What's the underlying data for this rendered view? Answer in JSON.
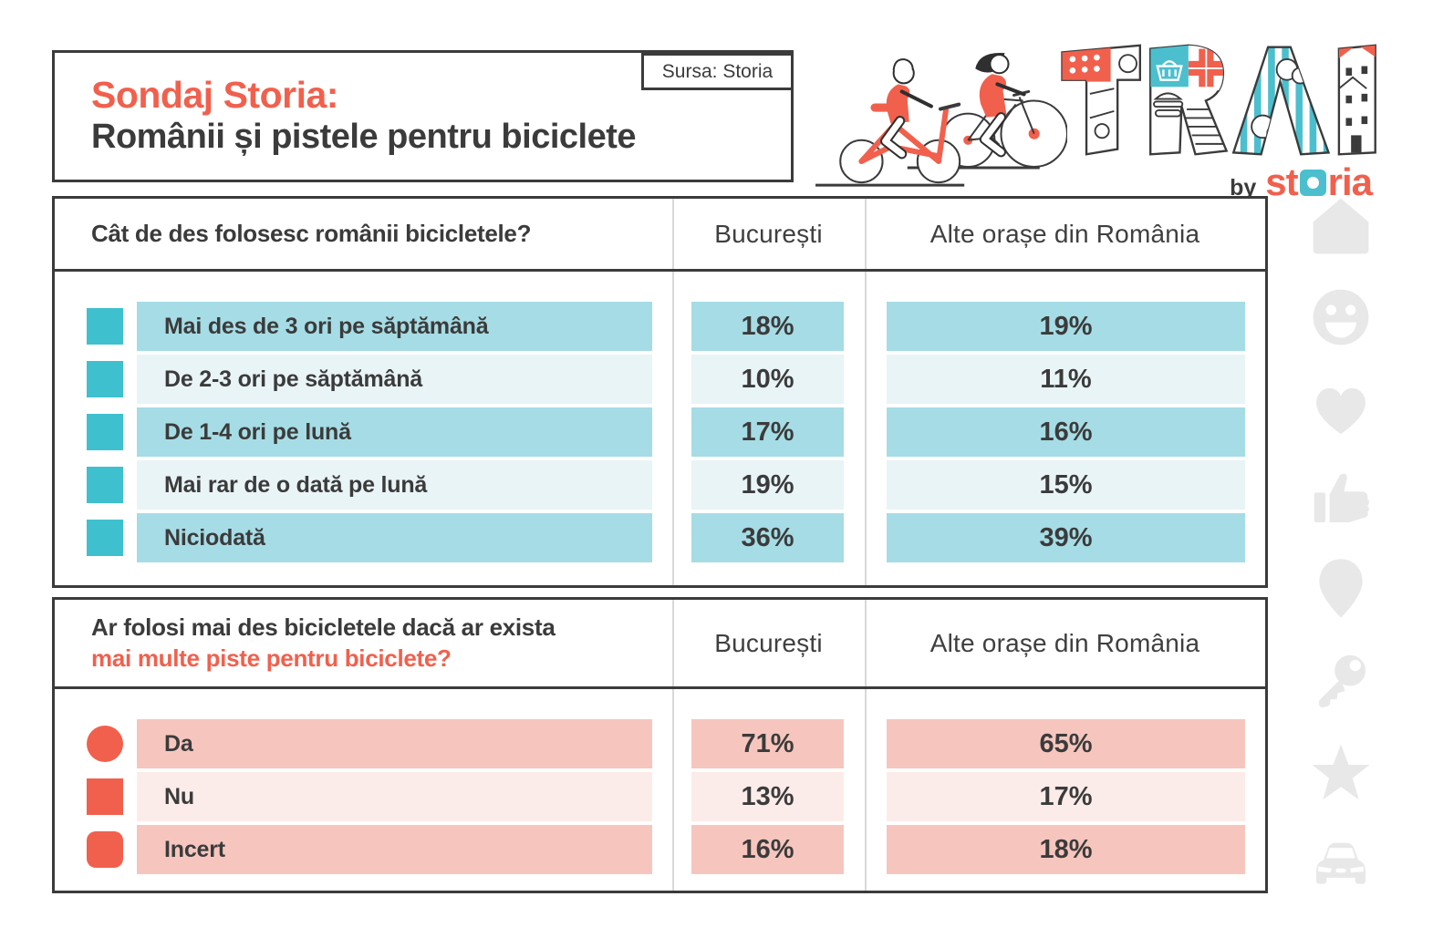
{
  "header": {
    "title_accent": "Sondaj Storia:",
    "title_main": "Românii și pistele pentru biciclete",
    "source_label": "Sursa: Storia",
    "logo_trai": "TRAI",
    "logo_by": "by",
    "logo_storia_left": "st",
    "logo_storia_right": "ria"
  },
  "colors": {
    "accent": "#F1604D",
    "dark": "#3B3B3B",
    "divider": "#D8D8D8",
    "teal": "#4BBFCE",
    "markerTeal": "#3EC0CF",
    "markerOrange": "#F1604D",
    "tealRowDark": "#A6DCE5",
    "tealRowLight": "#E9F4F7",
    "pinkRowDark": "#F6C6BE",
    "pinkRowLight": "#FCECE9",
    "iconGray": "#E8E8E8"
  },
  "tables": [
    {
      "question_line1": "Cât de des folosesc românii bicicletele?",
      "question_line2": "",
      "col1": "București",
      "col2": "Alte orașe din România",
      "marker_color_key": "markerTeal",
      "row_bg_dark_key": "tealRowDark",
      "row_bg_light_key": "tealRowLight",
      "rows": [
        {
          "label": "Mai des de 3 ori pe săptămână",
          "marker": "square",
          "v1": "18%",
          "v2": "19%"
        },
        {
          "label": "De 2-3 ori pe săptămână",
          "marker": "square",
          "v1": "10%",
          "v2": "11%"
        },
        {
          "label": "De 1-4 ori pe lună",
          "marker": "square",
          "v1": "17%",
          "v2": "16%"
        },
        {
          "label": "Mai rar de o dată pe lună",
          "marker": "square",
          "v1": "19%",
          "v2": "15%"
        },
        {
          "label": "Niciodată",
          "marker": "square",
          "v1": "36%",
          "v2": "39%"
        }
      ]
    },
    {
      "question_line1": "Ar folosi mai des bicicletele dacă ar exista",
      "question_line2": "mai multe piste pentru biciclete?",
      "col1": "București",
      "col2": "Alte orașe din România",
      "marker_color_key": "markerOrange",
      "row_bg_dark_key": "pinkRowDark",
      "row_bg_light_key": "pinkRowLight",
      "rows": [
        {
          "label": "Da",
          "marker": "circle",
          "v1": "71%",
          "v2": "65%"
        },
        {
          "label": "Nu",
          "marker": "square",
          "v1": "13%",
          "v2": "17%"
        },
        {
          "label": "Incert",
          "marker": "rounded",
          "v1": "16%",
          "v2": "18%"
        }
      ]
    }
  ],
  "sidebar_icons": [
    "home",
    "smiley",
    "heart",
    "thumbs-up",
    "location-pin",
    "key",
    "star",
    "car"
  ],
  "chart_data": [
    {
      "type": "table",
      "title": "Cât de des folosesc românii bicicletele?",
      "categories": [
        "Mai des de 3 ori pe săptămână",
        "De 2-3 ori pe săptămână",
        "De 1-4 ori pe lună",
        "Mai rar de o dată pe lună",
        "Niciodată"
      ],
      "series": [
        {
          "name": "București",
          "values": [
            18,
            10,
            17,
            19,
            36
          ]
        },
        {
          "name": "Alte orașe din România",
          "values": [
            19,
            11,
            16,
            15,
            39
          ]
        }
      ],
      "unit": "%"
    },
    {
      "type": "table",
      "title": "Ar folosi mai des bicicletele dacă ar exista mai multe piste pentru biciclete?",
      "categories": [
        "Da",
        "Nu",
        "Incert"
      ],
      "series": [
        {
          "name": "București",
          "values": [
            71,
            13,
            16
          ]
        },
        {
          "name": "Alte orașe din România",
          "values": [
            65,
            17,
            18
          ]
        }
      ],
      "unit": "%"
    }
  ]
}
